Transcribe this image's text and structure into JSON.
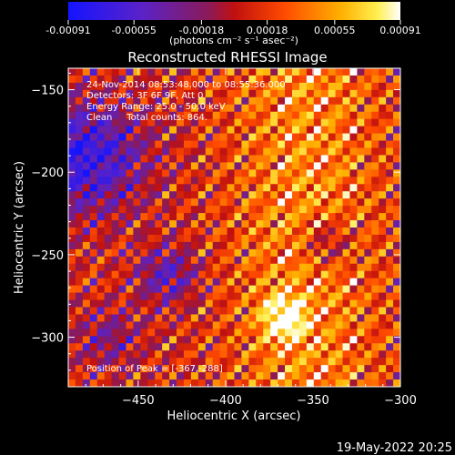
{
  "chart_data": {
    "type": "heatmap",
    "title": "Reconstructed RHESSI Image",
    "xlabel": "Heliocentric X (arcsec)",
    "ylabel": "Heliocentric Y (arcsec)",
    "xlim": [
      -490,
      -300
    ],
    "ylim": [
      -330,
      -137
    ],
    "x_ticks": [
      -450,
      -400,
      -350,
      -300
    ],
    "y_ticks": [
      -150,
      -200,
      -250,
      -300
    ],
    "x_tick_labels": [
      "−450",
      "−400",
      "−350",
      "−300"
    ],
    "y_tick_labels": [
      "−150",
      "−200",
      "−250",
      "−300"
    ],
    "colorbar": {
      "ticks": [
        -0.00091,
        -0.00055,
        -0.00018,
        0.00018,
        0.00055,
        0.00091
      ],
      "tick_labels": [
        "-0.00091",
        "-0.00055",
        "-0.00018",
        "0.00018",
        "0.00055",
        "0.00091"
      ],
      "unit_label": "(photons cm⁻² s⁻¹ asec⁻²)",
      "range": [
        -0.00091,
        0.00091
      ],
      "colors": [
        "#1a1aff",
        "#7a2aa8",
        "#c21818",
        "#ff5a00",
        "#ffd21a",
        "#ffffff"
      ]
    },
    "annotations": [
      "24-Nov-2014 08:53:48.000 to 08:55:36.000",
      "Detectors: 3F 6F 9F, Att 0",
      "Energy Range: 25.0 - 50.0 keV",
      "Clean     Total counts: 864.",
      "Position of Peak = [-367,-288]"
    ],
    "peak": {
      "x": -367,
      "y": -288
    }
  },
  "footer": {
    "date": "19-May-2022 20:25"
  }
}
